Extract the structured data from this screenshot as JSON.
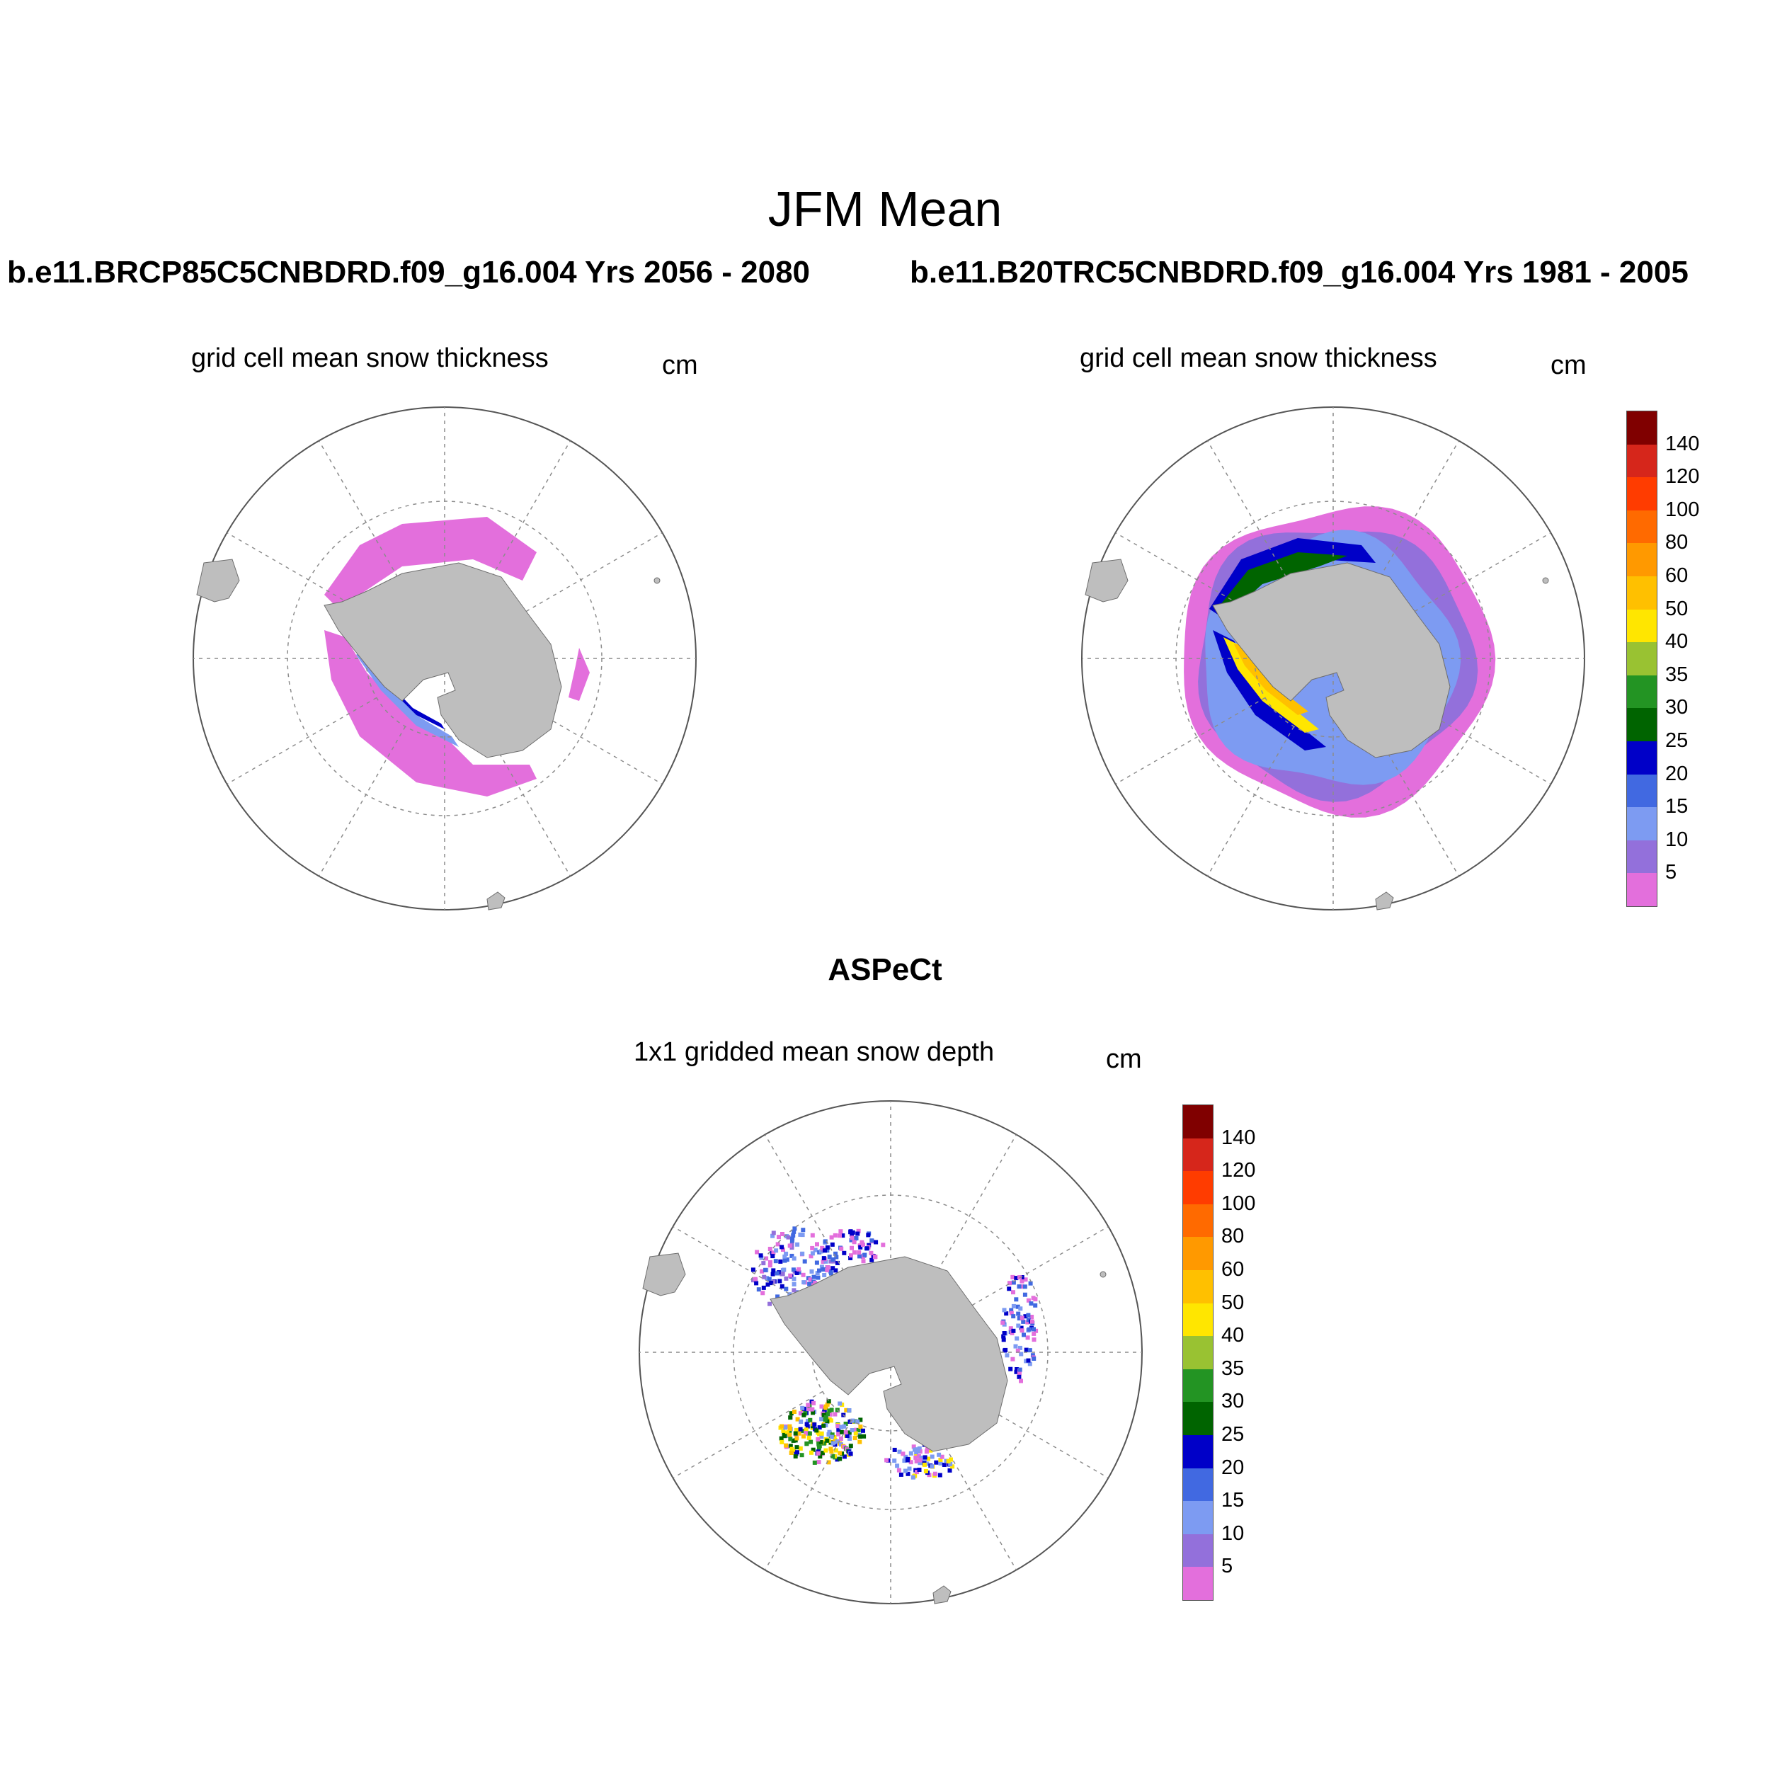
{
  "figure": {
    "title": "JFM Mean",
    "case_a": "b.e11.BRCP85C5CNBDRD.f09_g16.004  Yrs 2056 - 2080",
    "case_b": "b.e11.B20TRC5CNBDRD.f09_g16.004  Yrs 1981 - 2005",
    "obs_title": "ASPeCt"
  },
  "panels": [
    {
      "id": "future",
      "title": "grid cell mean snow thickness",
      "units": "cm"
    },
    {
      "id": "historical",
      "title": "grid cell mean snow thickness",
      "units": "cm"
    },
    {
      "id": "aspect",
      "title": "1x1 gridded mean snow depth",
      "units": "cm"
    }
  ],
  "colorbar": {
    "labels": [
      "140",
      "120",
      "100",
      "80",
      "60",
      "50",
      "40",
      "35",
      "30",
      "25",
      "20",
      "15",
      "10",
      "5"
    ],
    "colors": [
      "#800000",
      "#d6261b",
      "#ff3c00",
      "#ff6a00",
      "#ff9900",
      "#ffc000",
      "#ffe600",
      "#99c232",
      "#239423",
      "#006400",
      "#0000c8",
      "#4169e1",
      "#7d9bf2",
      "#9370db",
      "#e36fdc"
    ]
  },
  "map_colors": {
    "land": "#bebebe",
    "coast": "#6e6e6e",
    "grid": "#8c8c8c",
    "outline": "#555555"
  },
  "chart_data": {
    "type": "map",
    "projection": "south polar stereographic",
    "variable": "snow thickness / depth",
    "levels_cm": [
      5,
      10,
      15,
      20,
      25,
      30,
      35,
      40,
      50,
      60,
      80,
      100,
      120,
      140
    ]
  }
}
